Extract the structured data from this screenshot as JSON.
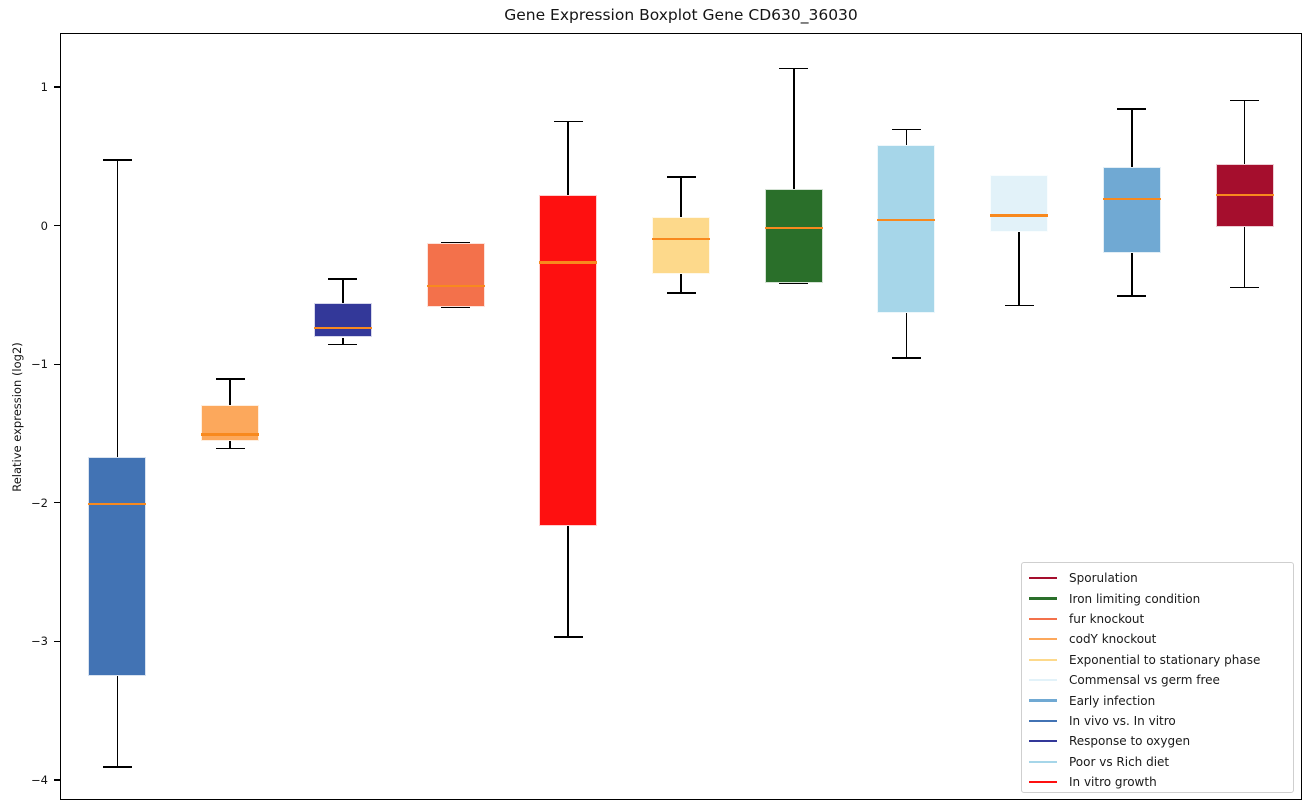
{
  "chart_data": {
    "type": "boxplot",
    "title": "Gene Expression Boxplot Gene CD630_36030",
    "ylabel": "Relative expression (log2)",
    "xlabel": "",
    "ylim": [
      -4.13,
      1.39
    ],
    "grid": false,
    "background_color": "#ffffff",
    "median_color": "#f8891e",
    "whisker_color": "#000000",
    "y_ticks": [
      {
        "label": "1",
        "value": 1
      },
      {
        "label": "0",
        "value": 0
      },
      {
        "label": "−1",
        "value": -1
      },
      {
        "label": "−2",
        "value": -2
      },
      {
        "label": "−3",
        "value": -3
      },
      {
        "label": "−4",
        "value": -4
      }
    ],
    "boxes": [
      {
        "label": "In vivo vs. In vitro",
        "color": "#4273b4",
        "whislo": -3.9,
        "q1": -3.24,
        "med": -2.0,
        "q3": -1.66,
        "whishi": 0.48
      },
      {
        "label": "codY knockout",
        "color": "#fca85c",
        "whislo": -1.6,
        "q1": -1.55,
        "med": -1.5,
        "q3": -1.29,
        "whishi": -1.1
      },
      {
        "label": "Response to oxygen",
        "color": "#333899",
        "whislo": -0.85,
        "q1": -0.8,
        "med": -0.73,
        "q3": -0.55,
        "whishi": -0.38
      },
      {
        "label": "fur knockout",
        "color": "#f3714b",
        "whislo": -0.58,
        "q1": -0.58,
        "med": -0.43,
        "q3": -0.12,
        "whishi": -0.12
      },
      {
        "label": "In vitro growth",
        "color": "#fe1010",
        "whislo": -2.96,
        "q1": -2.16,
        "med": -0.26,
        "q3": 0.23,
        "whishi": 0.76
      },
      {
        "label": "Exponential to stationary phase",
        "color": "#fdd98b",
        "whislo": -0.48,
        "q1": -0.34,
        "med": -0.09,
        "q3": 0.07,
        "whishi": 0.36
      },
      {
        "label": "Iron limiting condition",
        "color": "#2a6f2a",
        "whislo": -0.41,
        "q1": -0.41,
        "med": -0.01,
        "q3": 0.27,
        "whishi": 1.14
      },
      {
        "label": "Poor vs Rich diet",
        "color": "#a6d6e9",
        "whislo": -0.95,
        "q1": -0.62,
        "med": 0.05,
        "q3": 0.59,
        "whishi": 0.7
      },
      {
        "label": "Commensal vs germ free",
        "color": "#e2f2f9",
        "whislo": -0.57,
        "q1": -0.04,
        "med": 0.08,
        "q3": 0.37,
        "whishi": 0.37
      },
      {
        "label": "Early infection",
        "color": "#70a9d3",
        "whislo": -0.5,
        "q1": -0.19,
        "med": 0.2,
        "q3": 0.43,
        "whishi": 0.85
      },
      {
        "label": "Sporulation",
        "color": "#a50e2d",
        "whislo": -0.44,
        "q1": 0.0,
        "med": 0.23,
        "q3": 0.45,
        "whishi": 0.91
      }
    ],
    "legend_position": "lower right",
    "legend_order": [
      "Sporulation",
      "Iron limiting condition",
      "fur knockout",
      "codY knockout",
      "Exponential to stationary phase",
      "Commensal vs germ free",
      "Early infection",
      "In vivo vs. In vitro",
      "Response to oxygen",
      "Poor vs Rich diet",
      "In vitro growth"
    ]
  }
}
